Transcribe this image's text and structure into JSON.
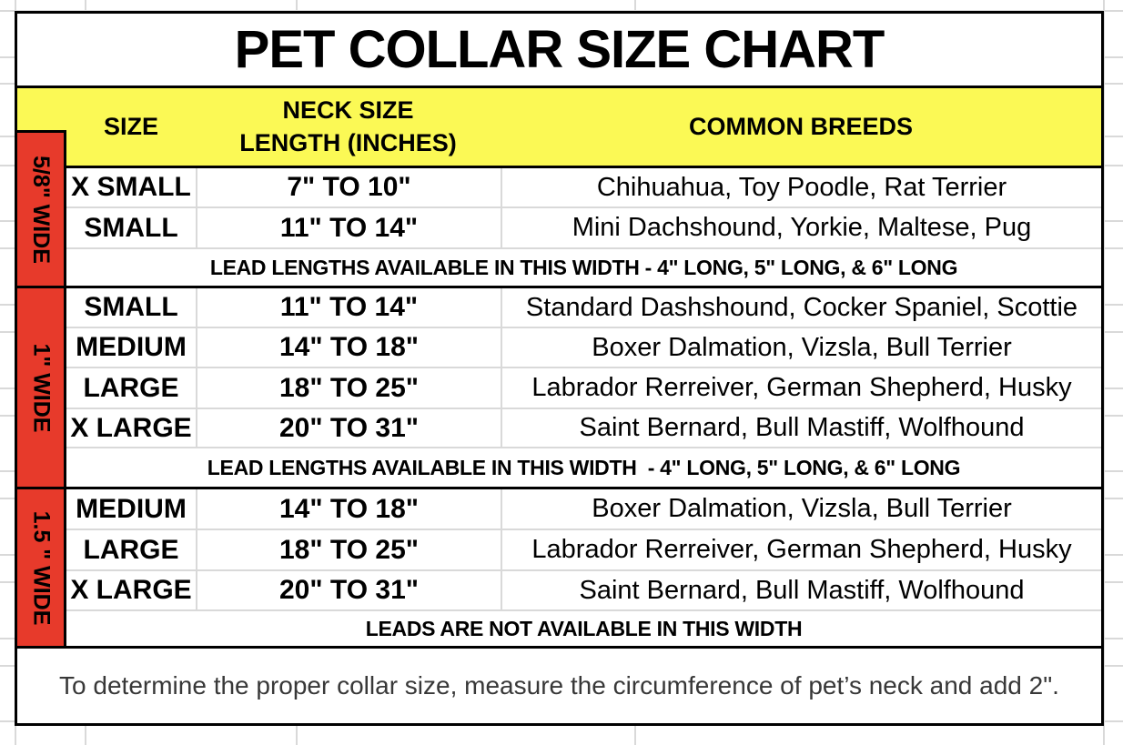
{
  "title": "PET COLLAR SIZE CHART",
  "header": {
    "size": "SIZE",
    "neck_line1": "NECK SIZE",
    "neck_line2": "LENGTH (INCHES)",
    "breeds": "COMMON BREEDS"
  },
  "sections": [
    {
      "width_label": "5/8\" WIDE",
      "rows": [
        [
          "X SMALL",
          "7\" TO 10\"",
          "Chihuahua, Toy Poodle, Rat Terrier"
        ],
        [
          "SMALL",
          "11\" TO 14\"",
          "Mini Dachshound, Yorkie, Maltese, Pug"
        ]
      ],
      "footer": "LEAD LENGTHS AVAILABLE IN THIS WIDTH - 4\" LONG, 5\" LONG, & 6\" LONG"
    },
    {
      "width_label": "1\" WIDE",
      "rows": [
        [
          "SMALL",
          "11\" TO 14\"",
          "Standard Dashshound, Cocker Spaniel, Scottie"
        ],
        [
          "MEDIUM",
          "14\" TO 18\"",
          "Boxer Dalmation, Vizsla, Bull Terrier"
        ],
        [
          "LARGE",
          "18\" TO 25\"",
          "Labrador Rerreiver, German Shepherd, Husky"
        ],
        [
          "X LARGE",
          "20\" TO 31\"",
          "Saint Bernard, Bull Mastiff, Wolfhound"
        ]
      ],
      "footer": "LEAD LENGTHS AVAILABLE IN THIS WIDTH  - 4\" LONG, 5\" LONG, & 6\" LONG"
    },
    {
      "width_label": "1.5 \" WIDE",
      "rows": [
        [
          "MEDIUM",
          "14\" TO 18\"",
          "Boxer Dalmation, Vizsla, Bull Terrier"
        ],
        [
          "LARGE",
          "18\" TO 25\"",
          "Labrador Rerreiver, German Shepherd, Husky"
        ],
        [
          "X LARGE",
          "20\" TO 31\"",
          "Saint Bernard, Bull Mastiff, Wolfhound"
        ]
      ],
      "footer": "LEADS ARE NOT AVAILABLE IN THIS WIDTH"
    }
  ],
  "note": "To determine the proper collar size, measure the circumference of pet’s neck and add 2\".",
  "colors": {
    "section_red": "#e73a2b",
    "header_yellow": "#fbf955",
    "gridline_gray": "#d9d9d9",
    "border_black": "#000000",
    "note_text": "#383838"
  }
}
